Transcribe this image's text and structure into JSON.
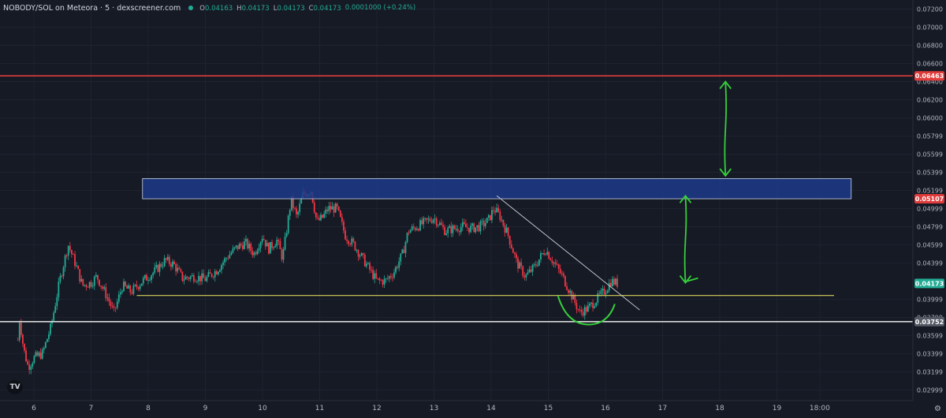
{
  "header": {
    "title": "NOBODY/SOL on Meteora · 5 · dexscreener.com",
    "ohlc": [
      {
        "k": "O",
        "v": "0.04163"
      },
      {
        "k": "H",
        "v": "0.04173"
      },
      {
        "k": "L",
        "v": "0.04173"
      },
      {
        "k": "C",
        "v": "0.04173"
      }
    ],
    "change": "0.0001000 (+0.24%)"
  },
  "logo": "TV",
  "settings_icon": "gear-icon",
  "colors": {
    "background": "#161a25",
    "grid": "#1f2330",
    "up": "#22ab94",
    "down": "#f23645",
    "resistance": "#e03b3b",
    "support": "#d8d8d8",
    "zone": "#1d3a8a",
    "yellow_line": "#d6d35a",
    "arrow": "#35d13a"
  },
  "chart_data": {
    "type": "candlestick",
    "x_ticks": [
      "6",
      "7",
      "8",
      "9",
      "10",
      "11",
      "12",
      "13",
      "14",
      "15",
      "16",
      "17",
      "18",
      "19",
      "18:00"
    ],
    "y_ticks": [
      "0.07200",
      "0.07000",
      "0.06800",
      "0.06600",
      "0.06400",
      "0.06200",
      "0.06000",
      "0.05799",
      "0.05599",
      "0.05399",
      "0.05199",
      "0.04999",
      "0.04799",
      "0.04599",
      "0.04399",
      "0.03999",
      "0.03799",
      "0.03599",
      "0.03399",
      "0.03199",
      "0.02999"
    ],
    "ylim": [
      0.0288,
      0.073
    ],
    "price_labels": [
      {
        "value": 0.06463,
        "text": "0.06463",
        "color": "#e03b3b"
      },
      {
        "value": 0.05107,
        "text": "0.05107",
        "color": "#e03b3b"
      },
      {
        "value": 0.04173,
        "text": "0.04173",
        "color": "#22ab94"
      },
      {
        "value": 0.03752,
        "text": "0.03752",
        "color": "#555a66"
      }
    ],
    "path_points": [
      [
        5.72,
        0.0355
      ],
      [
        5.75,
        0.0378
      ],
      [
        5.82,
        0.0345
      ],
      [
        5.9,
        0.0325
      ],
      [
        6.0,
        0.0335
      ],
      [
        6.15,
        0.034
      ],
      [
        6.3,
        0.037
      ],
      [
        6.45,
        0.042
      ],
      [
        6.6,
        0.046
      ],
      [
        6.72,
        0.044
      ],
      [
        6.85,
        0.0415
      ],
      [
        7.0,
        0.0418
      ],
      [
        7.1,
        0.0425
      ],
      [
        7.3,
        0.04
      ],
      [
        7.4,
        0.0385
      ],
      [
        7.55,
        0.0415
      ],
      [
        7.7,
        0.0408
      ],
      [
        7.9,
        0.042
      ],
      [
        8.1,
        0.043
      ],
      [
        8.3,
        0.0443
      ],
      [
        8.45,
        0.0438
      ],
      [
        8.6,
        0.0423
      ],
      [
        8.8,
        0.0425
      ],
      [
        9.0,
        0.0422
      ],
      [
        9.2,
        0.0432
      ],
      [
        9.4,
        0.0448
      ],
      [
        9.55,
        0.0457
      ],
      [
        9.7,
        0.0462
      ],
      [
        9.85,
        0.045
      ],
      [
        10.0,
        0.047
      ],
      [
        10.1,
        0.0455
      ],
      [
        10.25,
        0.0465
      ],
      [
        10.35,
        0.0445
      ],
      [
        10.5,
        0.051
      ],
      [
        10.6,
        0.049
      ],
      [
        10.7,
        0.0515
      ],
      [
        10.85,
        0.052
      ],
      [
        10.95,
        0.0485
      ],
      [
        11.05,
        0.049
      ],
      [
        11.15,
        0.05
      ],
      [
        11.3,
        0.05
      ],
      [
        11.45,
        0.047
      ],
      [
        11.6,
        0.046
      ],
      [
        11.75,
        0.0445
      ],
      [
        11.9,
        0.043
      ],
      [
        12.0,
        0.042
      ],
      [
        12.15,
        0.042
      ],
      [
        12.3,
        0.043
      ],
      [
        12.45,
        0.045
      ],
      [
        12.55,
        0.0475
      ],
      [
        12.7,
        0.048
      ],
      [
        12.85,
        0.0485
      ],
      [
        13.0,
        0.049
      ],
      [
        13.2,
        0.0475
      ],
      [
        13.35,
        0.0478
      ],
      [
        13.5,
        0.048
      ],
      [
        13.65,
        0.0478
      ],
      [
        13.8,
        0.048
      ],
      [
        13.95,
        0.0487
      ],
      [
        14.05,
        0.05
      ],
      [
        14.15,
        0.0492
      ],
      [
        14.3,
        0.047
      ],
      [
        14.45,
        0.044
      ],
      [
        14.6,
        0.0425
      ],
      [
        14.75,
        0.0435
      ],
      [
        14.95,
        0.0455
      ],
      [
        15.1,
        0.044
      ],
      [
        15.25,
        0.0425
      ],
      [
        15.4,
        0.0405
      ],
      [
        15.55,
        0.0385
      ],
      [
        15.7,
        0.039
      ],
      [
        15.85,
        0.04
      ],
      [
        16.0,
        0.041
      ],
      [
        16.1,
        0.042
      ],
      [
        16.22,
        0.0417
      ]
    ],
    "annotations": {
      "resistance_line": 0.06463,
      "zone": {
        "x0": 7.9,
        "x1": 20.3,
        "y_low": 0.05107,
        "y_high": 0.0533
      },
      "yellow_line": {
        "x0": 7.8,
        "x1": 20.0,
        "y": 0.0404
      },
      "support_line": 0.03752,
      "trendline": {
        "from": [
          14.1,
          0.0514
        ],
        "to": [
          16.6,
          0.0388
        ]
      },
      "arrows": [
        {
          "x": 18.1,
          "y_from": 0.0536,
          "y_to": 0.064
        },
        {
          "x": 17.4,
          "y_from": 0.0418,
          "y_to": 0.0514
        }
      ]
    }
  }
}
